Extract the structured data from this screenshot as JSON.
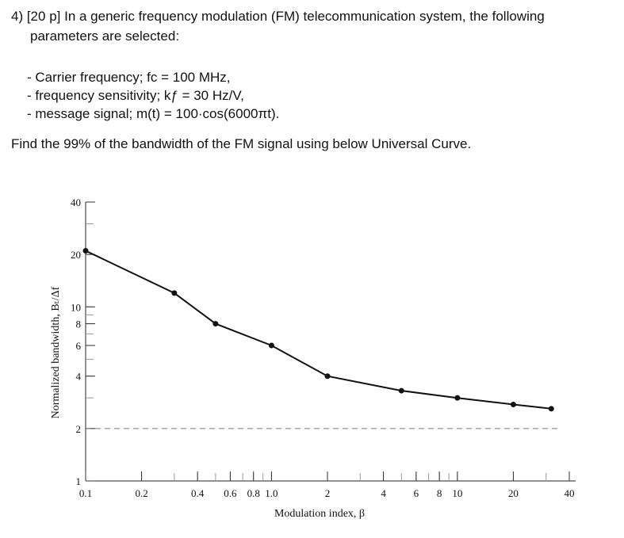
{
  "question": {
    "header": "4) [20 p] In a generic frequency modulation (FM) telecommunication system, the following",
    "header_cont": "parameters are selected:",
    "params": [
      "- Carrier frequency; fᴄ = 100 MHz,",
      "- frequency sensitivity; kƒ = 30 Hz/V,",
      "- message signal; m(t) = 100·cos(6000πt)."
    ],
    "task": "Find the 99% of the bandwidth of the FM signal using below Universal Curve."
  },
  "chart_data": {
    "type": "line",
    "title": "",
    "xlabel": "Modulation index, β",
    "ylabel": "Normalized bandwidth, Bₜ/Δf",
    "x_scale": "log",
    "y_scale": "log",
    "xlim": [
      0.1,
      40
    ],
    "ylim": [
      1,
      40
    ],
    "x_ticks": [
      "0.1",
      "0.2",
      "0.4",
      "0.6",
      "0.8",
      "1.0",
      "2",
      "4",
      "6",
      "8",
      "10",
      "20",
      "40"
    ],
    "y_ticks": [
      "1",
      "2",
      "4",
      "6",
      "8",
      "10",
      "20",
      "40"
    ],
    "series": [
      {
        "name": "",
        "x": [
          0.1,
          0.3,
          0.5,
          1.0,
          2.0,
          5.0,
          10.0,
          20.0,
          32.0
        ],
        "y": [
          21,
          12,
          8,
          6,
          4,
          3.3,
          3.0,
          2.75,
          2.6
        ]
      }
    ],
    "reference_line": {
      "y": 2,
      "style": "dashed"
    },
    "grid": false
  }
}
